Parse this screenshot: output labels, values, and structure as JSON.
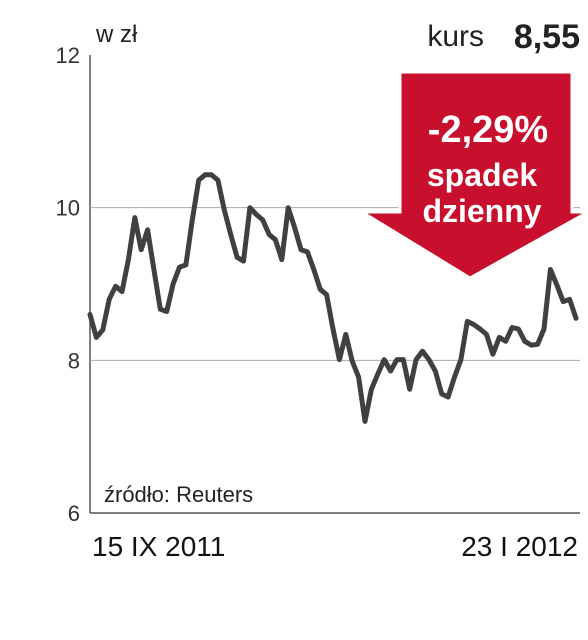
{
  "chart_data": {
    "type": "line",
    "unit_label": "w zł",
    "annotations": {
      "price_label": "kurs",
      "price": "8,55",
      "change": "-2,29%",
      "change_line1": "spadek",
      "change_line2": "dzienny",
      "source": "źródło: Reuters"
    },
    "categories": [
      "15 IX 2011",
      null,
      null,
      null,
      null,
      null,
      null,
      null,
      null,
      null,
      null,
      null,
      null,
      null,
      null,
      null,
      null,
      null,
      null,
      null,
      null,
      null,
      null,
      null,
      null,
      null,
      null,
      null,
      null,
      null,
      null,
      null,
      null,
      null,
      null,
      null,
      null,
      null,
      null,
      null,
      null,
      null,
      null,
      null,
      null,
      null,
      null,
      null,
      null,
      null,
      null,
      null,
      null,
      null,
      null,
      null,
      null,
      null,
      null,
      null,
      null,
      null,
      null,
      null,
      null,
      null,
      null,
      null,
      null,
      null,
      null,
      null,
      null,
      null,
      null,
      null,
      "23 I 2012"
    ],
    "values": [
      8.6,
      8.3,
      8.4,
      8.8,
      8.97,
      8.9,
      9.32,
      9.87,
      9.45,
      9.71,
      9.19,
      8.67,
      8.64,
      9.0,
      9.22,
      9.25,
      9.84,
      10.36,
      10.43,
      10.43,
      10.36,
      9.97,
      9.65,
      9.35,
      9.3,
      10.0,
      9.91,
      9.84,
      9.65,
      9.58,
      9.32,
      10.0,
      9.74,
      9.45,
      9.42,
      9.19,
      8.93,
      8.86,
      8.41,
      8.01,
      8.34,
      7.99,
      7.78,
      7.2,
      7.62,
      7.82,
      8.01,
      7.86,
      8.01,
      8.01,
      7.62,
      8.01,
      8.12,
      8.01,
      7.86,
      7.56,
      7.52,
      7.78,
      8.01,
      8.51,
      8.47,
      8.41,
      8.34,
      8.08,
      8.3,
      8.25,
      8.43,
      8.41,
      8.25,
      8.2,
      8.21,
      8.41,
      9.19,
      8.99,
      8.77,
      8.8,
      8.55
    ],
    "color": "#404040",
    "ylim": [
      6,
      12
    ],
    "yticks": [
      6,
      8,
      10,
      12
    ],
    "grid": true
  }
}
